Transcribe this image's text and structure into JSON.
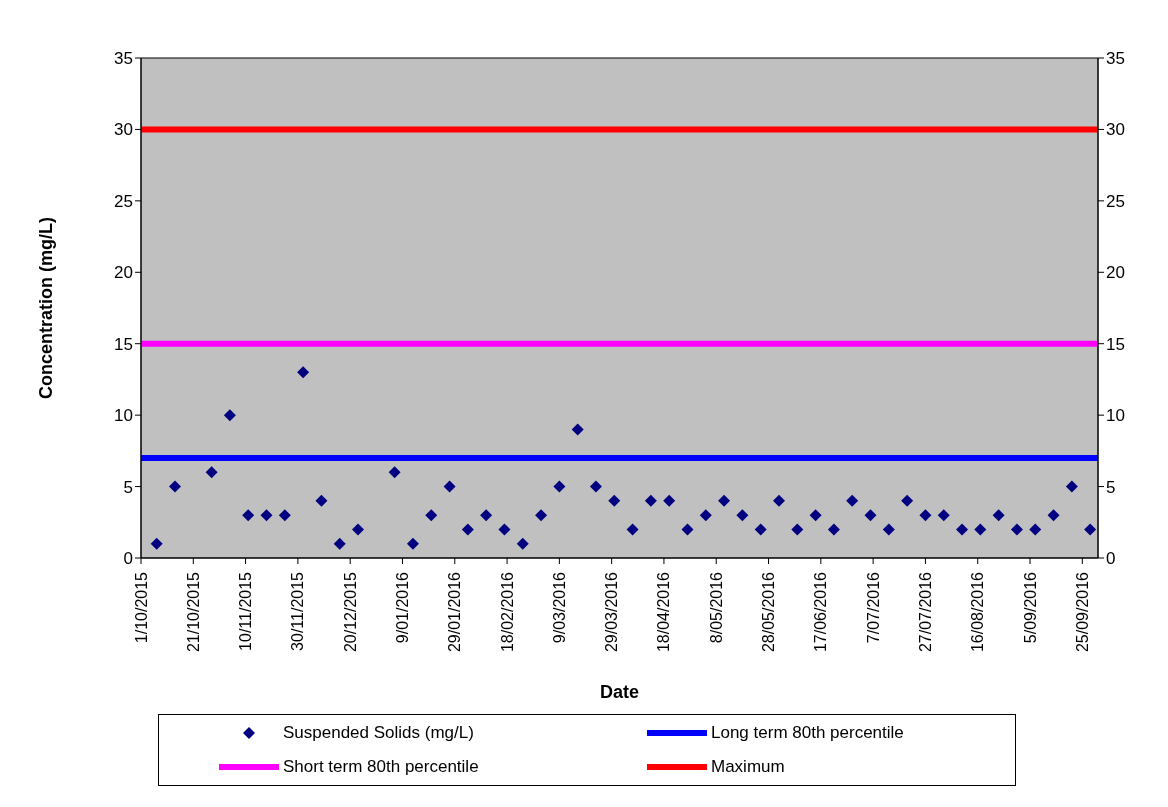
{
  "chart_data": {
    "type": "scatter",
    "xlabel": "Date",
    "ylabel": "Concentration (mg/L)",
    "xlim": [
      "2015-10-01",
      "2016-10-01"
    ],
    "xticks": [
      {
        "value": "2015-10-01",
        "label": "1/10/2015"
      },
      {
        "value": "2015-10-21",
        "label": "21/10/2015"
      },
      {
        "value": "2015-11-10",
        "label": "10/11/2015"
      },
      {
        "value": "2015-11-30",
        "label": "30/11/2015"
      },
      {
        "value": "2015-12-20",
        "label": "20/12/2015"
      },
      {
        "value": "2016-01-09",
        "label": "9/01/2016"
      },
      {
        "value": "2016-01-29",
        "label": "29/01/2016"
      },
      {
        "value": "2016-02-18",
        "label": "18/02/2016"
      },
      {
        "value": "2016-03-09",
        "label": "9/03/2016"
      },
      {
        "value": "2016-03-29",
        "label": "29/03/2016"
      },
      {
        "value": "2016-04-18",
        "label": "18/04/2016"
      },
      {
        "value": "2016-05-08",
        "label": "8/05/2016"
      },
      {
        "value": "2016-05-28",
        "label": "28/05/2016"
      },
      {
        "value": "2016-06-17",
        "label": "17/06/2016"
      },
      {
        "value": "2016-07-07",
        "label": "7/07/2016"
      },
      {
        "value": "2016-07-27",
        "label": "27/07/2016"
      },
      {
        "value": "2016-08-16",
        "label": "16/08/2016"
      },
      {
        "value": "2016-09-05",
        "label": "5/09/2016"
      },
      {
        "value": "2016-09-25",
        "label": "25/09/2016"
      }
    ],
    "ylim": [
      0,
      35
    ],
    "yticks": [
      0,
      5,
      10,
      15,
      20,
      25,
      30,
      35
    ],
    "y2lim": [
      0,
      35
    ],
    "y2ticks": [
      0,
      5,
      10,
      15,
      20,
      25,
      30,
      35
    ],
    "grid": false,
    "legend": "bottom",
    "series": [
      {
        "name": "Suspended Solids (mg/L)",
        "type": "scatter",
        "marker": "diamond",
        "color": "#000080",
        "x": [
          "2015-10-07",
          "2015-10-14",
          "2015-10-28",
          "2015-11-04",
          "2015-11-11",
          "2015-11-18",
          "2015-11-25",
          "2015-12-02",
          "2015-12-09",
          "2015-12-16",
          "2015-12-23",
          "2016-01-06",
          "2016-01-13",
          "2016-01-20",
          "2016-01-27",
          "2016-02-03",
          "2016-02-10",
          "2016-02-17",
          "2016-02-24",
          "2016-03-02",
          "2016-03-09",
          "2016-03-16",
          "2016-03-23",
          "2016-03-30",
          "2016-04-06",
          "2016-04-13",
          "2016-04-20",
          "2016-04-27",
          "2016-05-04",
          "2016-05-11",
          "2016-05-18",
          "2016-05-25",
          "2016-06-01",
          "2016-06-08",
          "2016-06-15",
          "2016-06-22",
          "2016-06-29",
          "2016-07-06",
          "2016-07-13",
          "2016-07-20",
          "2016-07-27",
          "2016-08-03",
          "2016-08-10",
          "2016-08-17",
          "2016-08-24",
          "2016-08-31",
          "2016-09-07",
          "2016-09-14",
          "2016-09-21",
          "2016-09-28"
        ],
        "values": [
          1,
          5,
          6,
          10,
          3,
          3,
          3,
          13,
          4,
          1,
          2,
          6,
          1,
          3,
          5,
          2,
          3,
          2,
          1,
          3,
          5,
          9,
          5,
          4,
          2,
          4,
          4,
          2,
          3,
          4,
          3,
          2,
          4,
          2,
          3,
          2,
          4,
          3,
          2,
          4,
          3,
          3,
          2,
          2,
          3,
          2,
          2,
          3,
          5,
          2
        ]
      },
      {
        "name": "Long term 80th percentile",
        "type": "line",
        "marker": "none",
        "color": "#0000ff",
        "x": [
          "2015-10-01",
          "2016-10-01"
        ],
        "values": [
          7,
          7
        ]
      },
      {
        "name": "Short term 80th percentile",
        "type": "line",
        "marker": "none",
        "color": "#ff00ff",
        "x": [
          "2015-10-01",
          "2016-10-01"
        ],
        "values": [
          15,
          15
        ]
      },
      {
        "name": "Maximum",
        "type": "line",
        "marker": "none",
        "color": "#ff0000",
        "x": [
          "2015-10-01",
          "2016-10-01"
        ],
        "values": [
          30,
          30
        ]
      }
    ]
  }
}
